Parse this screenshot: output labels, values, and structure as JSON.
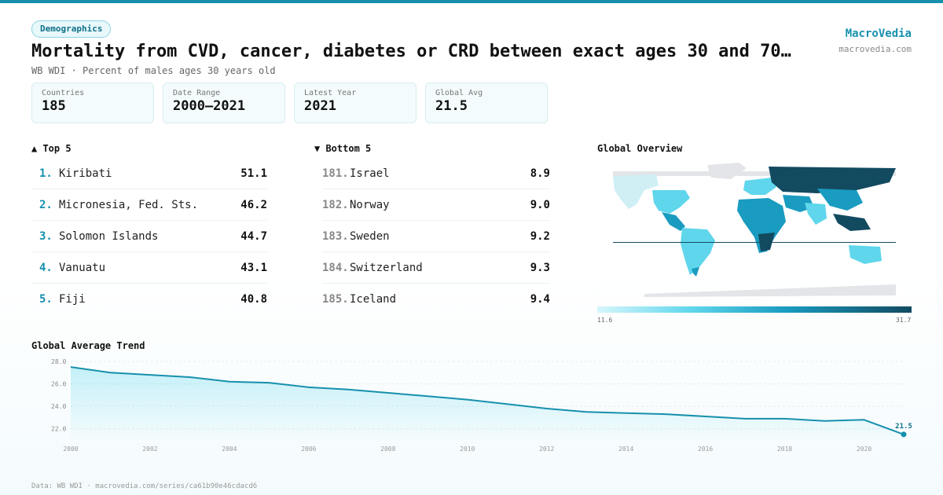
{
  "header": {
    "tag": "Demographics",
    "title": "Mortality from CVD, cancer, diabetes or CRD between exact ages 30 and 70…",
    "subtitle": "WB WDI · Percent of males ages 30 years old",
    "brand": "MacroVedia",
    "brand_url": "macrovedia.com"
  },
  "stats": [
    {
      "label": "Countries",
      "value": "185"
    },
    {
      "label": "Date Range",
      "value": "2000–2021"
    },
    {
      "label": "Latest Year",
      "value": "2021"
    },
    {
      "label": "Global Avg",
      "value": "21.5"
    }
  ],
  "top5": {
    "heading": "▲ Top 5",
    "rows": [
      {
        "rank": "1.",
        "name": "Kiribati",
        "value": "51.1"
      },
      {
        "rank": "2.",
        "name": "Micronesia, Fed. Sts.",
        "value": "46.2"
      },
      {
        "rank": "3.",
        "name": "Solomon Islands",
        "value": "44.7"
      },
      {
        "rank": "4.",
        "name": "Vanuatu",
        "value": "43.1"
      },
      {
        "rank": "5.",
        "name": "Fiji",
        "value": "40.8"
      }
    ]
  },
  "bottom5": {
    "heading": "▼ Bottom 5",
    "rows": [
      {
        "rank": "181.",
        "name": "Israel",
        "value": "8.9"
      },
      {
        "rank": "182.",
        "name": "Norway",
        "value": "9.0"
      },
      {
        "rank": "183.",
        "name": "Sweden",
        "value": "9.2"
      },
      {
        "rank": "184.",
        "name": "Switzerland",
        "value": "9.3"
      },
      {
        "rank": "185.",
        "name": "Iceland",
        "value": "9.4"
      }
    ]
  },
  "map": {
    "heading": "Global Overview",
    "legend_min": "11.6",
    "legend_max": "31.7",
    "colors": {
      "low": "#d6f6fb",
      "mid": "#5fd6ec",
      "high": "#1a9bc0",
      "max": "#124a60",
      "nodata": "#e3e5e8"
    }
  },
  "trend_heading": "Global Average Trend",
  "chart_data": {
    "type": "area",
    "x": [
      2000,
      2001,
      2002,
      2003,
      2004,
      2005,
      2006,
      2007,
      2008,
      2009,
      2010,
      2011,
      2012,
      2013,
      2014,
      2015,
      2016,
      2017,
      2018,
      2019,
      2020,
      2021
    ],
    "values": [
      27.5,
      27.0,
      26.8,
      26.6,
      26.2,
      26.1,
      25.7,
      25.5,
      25.2,
      24.9,
      24.6,
      24.2,
      23.8,
      23.5,
      23.4,
      23.3,
      23.1,
      22.9,
      22.9,
      22.7,
      22.8,
      21.5
    ],
    "ylim": [
      21,
      28
    ],
    "yticks": [
      "22.0",
      "24.0",
      "26.0",
      "28.0"
    ],
    "xticks": [
      "2000",
      "2002",
      "2004",
      "2006",
      "2008",
      "2010",
      "2012",
      "2014",
      "2016",
      "2018",
      "2020"
    ],
    "last_label": "21.5",
    "line_color": "#1790ad",
    "grid": true
  },
  "footer": "Data: WB WDI · macrovedia.com/series/ca61b90e46cdacd6"
}
